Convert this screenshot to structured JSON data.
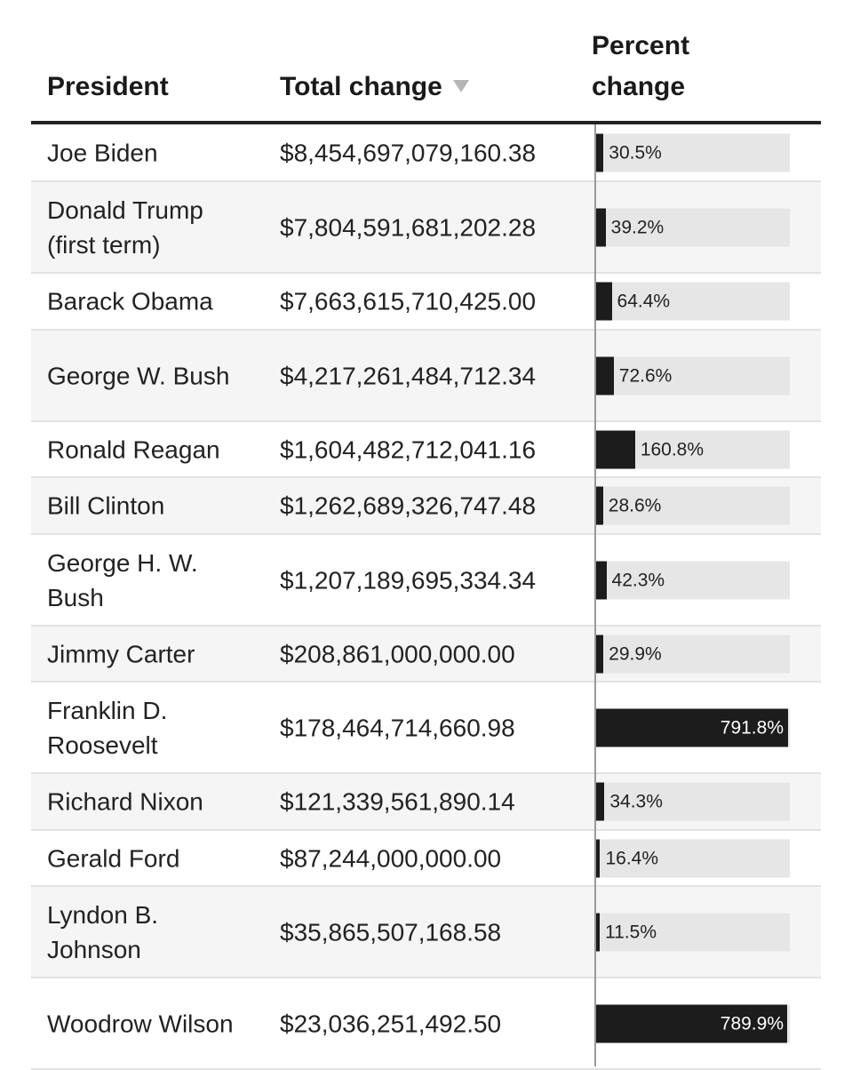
{
  "header": {
    "president": "President",
    "total_change": "Total change",
    "percent_line1": "Percent",
    "percent_line2": "change"
  },
  "bar_max_percent": 800,
  "rows": [
    {
      "name": "Joe Biden",
      "total": "$8,454,697,079,160.38",
      "pct": 30.5,
      "pct_label": "30.5%"
    },
    {
      "name": "Donald Trump (first term)",
      "total": "$7,804,591,681,202.28",
      "pct": 39.2,
      "pct_label": "39.2%"
    },
    {
      "name": "Barack Obama",
      "total": "$7,663,615,710,425.00",
      "pct": 64.4,
      "pct_label": "64.4%"
    },
    {
      "name": "George W. Bush",
      "total": "$4,217,261,484,712.34",
      "pct": 72.6,
      "pct_label": "72.6%"
    },
    {
      "name": "Ronald Reagan",
      "total": "$1,604,482,712,041.16",
      "pct": 160.8,
      "pct_label": "160.8%"
    },
    {
      "name": "Bill Clinton",
      "total": "$1,262,689,326,747.48",
      "pct": 28.6,
      "pct_label": "28.6%"
    },
    {
      "name": "George H. W. Bush",
      "total": "$1,207,189,695,334.34",
      "pct": 42.3,
      "pct_label": "42.3%"
    },
    {
      "name": "Jimmy Carter",
      "total": "$208,861,000,000.00",
      "pct": 29.9,
      "pct_label": "29.9%"
    },
    {
      "name": "Franklin D. Roosevelt",
      "total": "$178,464,714,660.98",
      "pct": 791.8,
      "pct_label": "791.8%"
    },
    {
      "name": "Richard Nixon",
      "total": "$121,339,561,890.14",
      "pct": 34.3,
      "pct_label": "34.3%"
    },
    {
      "name": "Gerald Ford",
      "total": "$87,244,000,000.00",
      "pct": 16.4,
      "pct_label": "16.4%"
    },
    {
      "name": "Lyndon B. Johnson",
      "total": "$35,865,507,168.58",
      "pct": 11.5,
      "pct_label": "11.5%"
    },
    {
      "name": "Woodrow Wilson",
      "total": "$23,036,251,492.50",
      "pct": 789.9,
      "pct_label": "789.9%"
    }
  ]
}
